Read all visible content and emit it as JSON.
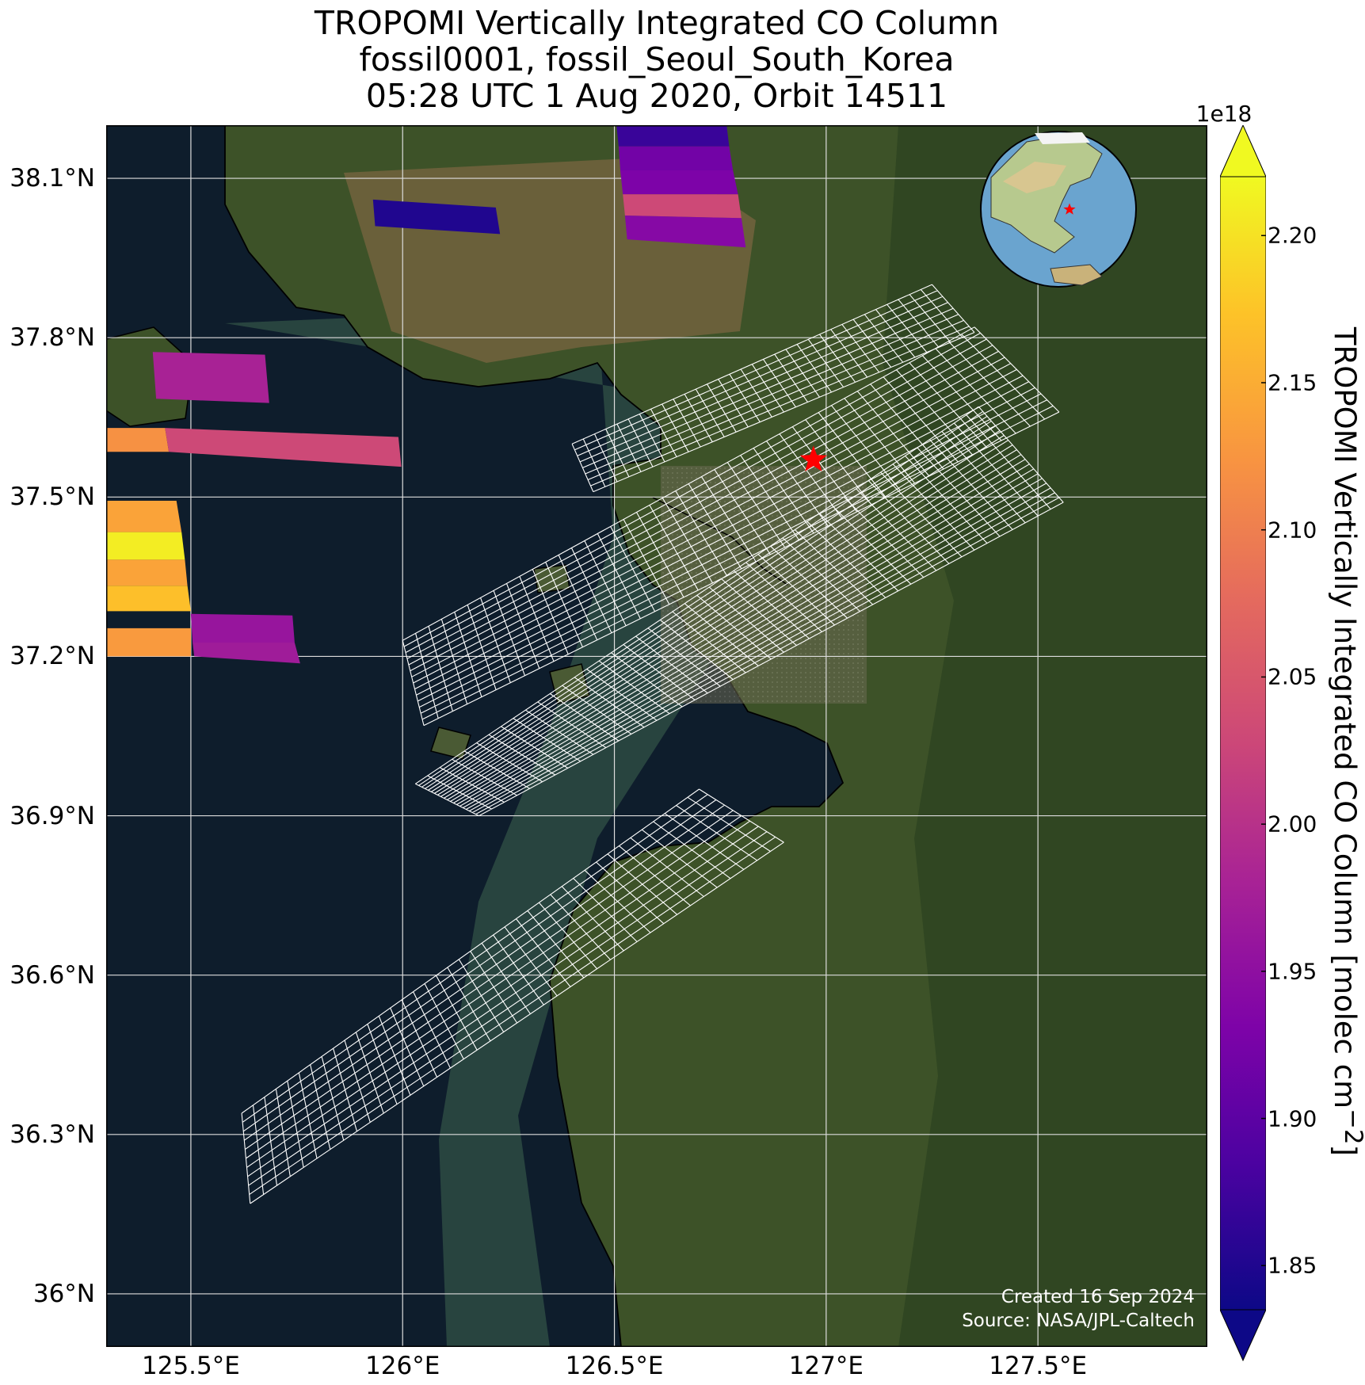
{
  "title": {
    "line1": "TROPOMI Vertically Integrated CO Column",
    "line2": "fossil0001, fossil_Seoul_South_Korea",
    "line3": "05:28 UTC 1 Aug 2020, Orbit 14511"
  },
  "map": {
    "lon_range": [
      125.3,
      127.9
    ],
    "lat_range": [
      35.9,
      38.2
    ],
    "target_site": {
      "lon": 126.97,
      "lat": 37.57,
      "marker": "star-icon",
      "color": "#ff0000"
    },
    "basemap": "satellite imagery",
    "colors": {
      "sea": "#0e1d2c",
      "land": "#3d5228",
      "coast": "#000000",
      "grid": "#dddddd",
      "footprint_outline": "#ffffff"
    }
  },
  "axes": {
    "y_ticks": [
      {
        "value": 38.1,
        "label": "38.1°N"
      },
      {
        "value": 37.8,
        "label": "37.8°N"
      },
      {
        "value": 37.5,
        "label": "37.5°N"
      },
      {
        "value": 37.2,
        "label": "37.2°N"
      },
      {
        "value": 36.9,
        "label": "36.9°N"
      },
      {
        "value": 36.6,
        "label": "36.6°N"
      },
      {
        "value": 36.3,
        "label": "36.3°N"
      },
      {
        "value": 36.0,
        "label": "36°N"
      }
    ],
    "x_ticks": [
      {
        "value": 125.5,
        "label": "125.5°E"
      },
      {
        "value": 126.0,
        "label": "126°E"
      },
      {
        "value": 126.5,
        "label": "126.5°E"
      },
      {
        "value": 127.0,
        "label": "127°E"
      },
      {
        "value": 127.5,
        "label": "127.5°E"
      }
    ]
  },
  "colorbar": {
    "label": "TROPOMI Vertically Integrated CO Column [molec cm",
    "label_sup": "−2",
    "label_end": "]",
    "exponent": "1e18",
    "range": [
      1.835,
      2.22
    ],
    "ticks": [
      "1.85",
      "1.90",
      "1.95",
      "2.00",
      "2.05",
      "2.10",
      "2.15",
      "2.20"
    ],
    "tick_values": [
      1.85,
      1.9,
      1.95,
      2.0,
      2.05,
      2.1,
      2.15,
      2.2
    ],
    "colormap": "plasma",
    "extend": "both"
  },
  "credits": {
    "created": "Created 16 Sep 2024",
    "source": "Source: NASA/JPL-Caltech"
  },
  "inset_globe": {
    "center_lon": 127,
    "center_lat": 37.5,
    "marker": "star-icon",
    "color": "#ff0000"
  },
  "pixels": [
    {
      "corners": [
        [
          125.3,
          37.63
        ],
        [
          125.439,
          37.63
        ],
        [
          125.448,
          37.585
        ],
        [
          125.3,
          37.585
        ]
      ],
      "value": 2.12
    },
    {
      "corners": [
        [
          125.439,
          37.63
        ],
        [
          125.99,
          37.613
        ],
        [
          125.997,
          37.557
        ],
        [
          125.448,
          37.585
        ]
      ],
      "value": 2.03
    },
    {
      "corners": [
        [
          125.41,
          37.773
        ],
        [
          125.675,
          37.768
        ],
        [
          125.685,
          37.677
        ],
        [
          125.418,
          37.685
        ]
      ],
      "value": 1.98
    },
    {
      "corners": [
        [
          125.3,
          37.493
        ],
        [
          125.466,
          37.493
        ],
        [
          125.478,
          37.434
        ],
        [
          125.3,
          37.434
        ]
      ],
      "value": 2.14
    },
    {
      "corners": [
        [
          125.3,
          37.434
        ],
        [
          125.478,
          37.434
        ],
        [
          125.486,
          37.382
        ],
        [
          125.3,
          37.382
        ]
      ],
      "value": 2.21
    },
    {
      "corners": [
        [
          125.3,
          37.382
        ],
        [
          125.486,
          37.382
        ],
        [
          125.492,
          37.333
        ],
        [
          125.3,
          37.333
        ]
      ],
      "value": 2.14
    },
    {
      "corners": [
        [
          125.3,
          37.333
        ],
        [
          125.492,
          37.333
        ],
        [
          125.5,
          37.285
        ],
        [
          125.3,
          37.285
        ]
      ],
      "value": 2.17
    },
    {
      "corners": [
        [
          125.3,
          37.253
        ],
        [
          125.5,
          37.253
        ],
        [
          125.5,
          37.2
        ],
        [
          125.3,
          37.2
        ]
      ],
      "value": 2.13
    },
    {
      "corners": [
        [
          125.5,
          37.28
        ],
        [
          125.74,
          37.277
        ],
        [
          125.745,
          37.226
        ],
        [
          125.504,
          37.226
        ]
      ],
      "value": 1.96
    },
    {
      "corners": [
        [
          125.504,
          37.226
        ],
        [
          125.745,
          37.226
        ],
        [
          125.758,
          37.187
        ],
        [
          125.508,
          37.2
        ]
      ],
      "value": 1.97
    },
    {
      "corners": [
        [
          125.93,
          38.06
        ],
        [
          126.22,
          38.045
        ],
        [
          126.23,
          37.995
        ],
        [
          125.935,
          38.01
        ]
      ],
      "value": 1.85
    },
    {
      "corners": [
        [
          126.505,
          38.2
        ],
        [
          126.765,
          38.2
        ],
        [
          126.771,
          38.16
        ],
        [
          126.51,
          38.16
        ]
      ],
      "value": 1.87
    },
    {
      "corners": [
        [
          126.51,
          38.16
        ],
        [
          126.771,
          38.16
        ],
        [
          126.78,
          38.115
        ],
        [
          126.514,
          38.115
        ]
      ],
      "value": 1.92
    },
    {
      "corners": [
        [
          126.514,
          38.115
        ],
        [
          126.78,
          38.115
        ],
        [
          126.792,
          38.07
        ],
        [
          126.52,
          38.07
        ]
      ],
      "value": 1.93
    },
    {
      "corners": [
        [
          126.52,
          38.07
        ],
        [
          126.792,
          38.07
        ],
        [
          126.8,
          38.025
        ],
        [
          126.525,
          38.03
        ]
      ],
      "value": 2.03
    },
    {
      "corners": [
        [
          126.525,
          38.03
        ],
        [
          126.8,
          38.025
        ],
        [
          126.81,
          37.97
        ],
        [
          126.53,
          37.985
        ]
      ],
      "value": 1.94
    }
  ],
  "footprint_swaths": [
    {
      "corners": [
        [
          126.4,
          37.6
        ],
        [
          127.25,
          37.9
        ],
        [
          127.35,
          37.81
        ],
        [
          126.45,
          37.51
        ]
      ],
      "cols": 32,
      "rows": 8
    },
    {
      "corners": [
        [
          126.0,
          37.23
        ],
        [
          127.35,
          37.82
        ],
        [
          127.55,
          37.66
        ],
        [
          126.05,
          37.07
        ]
      ],
      "cols": 44,
      "rows": 14
    },
    {
      "corners": [
        [
          126.03,
          36.96
        ],
        [
          127.36,
          37.67
        ],
        [
          127.56,
          37.49
        ],
        [
          126.18,
          36.9
        ]
      ],
      "cols": 46,
      "rows": 20
    },
    {
      "corners": [
        [
          125.62,
          36.34
        ],
        [
          126.7,
          36.95
        ],
        [
          126.9,
          36.85
        ],
        [
          125.64,
          36.17
        ]
      ],
      "cols": 40,
      "rows": 10
    }
  ]
}
